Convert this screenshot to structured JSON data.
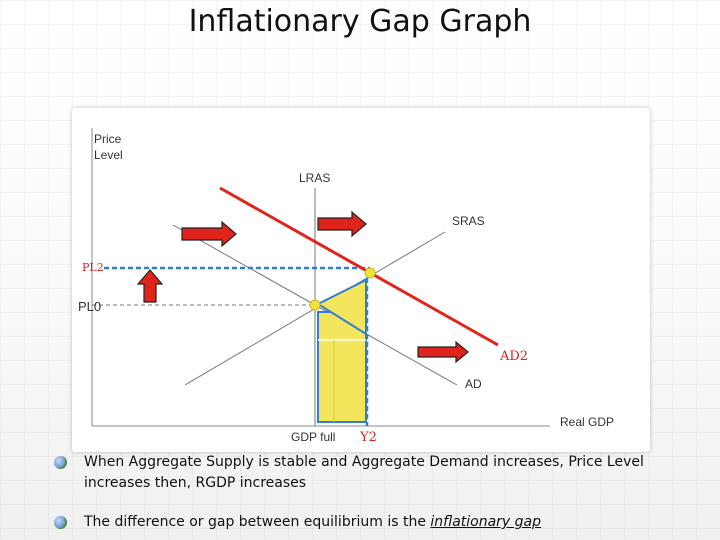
{
  "slide": {
    "title": "Inflationary Gap Graph"
  },
  "graph": {
    "axis_y_label_line1": "Price",
    "axis_y_label_line2": "Level",
    "axis_x_label": "Real GDP",
    "lras_label": "LRAS",
    "sras_label": "SRAS",
    "ad_label": "AD",
    "ad2_label": "AD2",
    "pl0_label": "PL0",
    "pl2_label": "PL2",
    "gdp_full_label": "GDP full",
    "y2_label": "Y2",
    "colors": {
      "ad2_curve": "#e0241b",
      "arrow_fill": "#e0241b",
      "dashed_guide": "#2f7fd4",
      "gap_fill": "#f3e55c",
      "gap_outline": "#2f7fd4",
      "equilibrium_dot": "#f2e23a",
      "curve_gray": "#777777"
    },
    "arrows": [
      "right-arrow",
      "right-arrow",
      "up-arrow",
      "right-arrow"
    ]
  },
  "bullets": [
    {
      "text": "When Aggregate Supply is stable and Aggregate Demand increases, Price Level increases then, RGDP increases"
    },
    {
      "text_before": "The difference or gap between equilibrium is the ",
      "term": "inflationary gap"
    }
  ]
}
